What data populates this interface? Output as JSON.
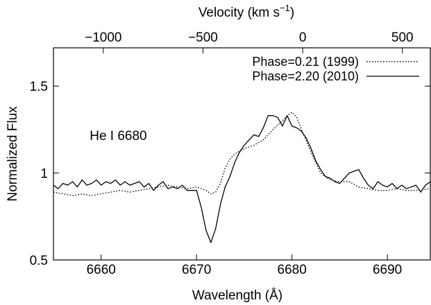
{
  "chart_data": {
    "type": "line",
    "xlabel": "Wavelength (Å)",
    "ylabel": "Normalized Flux",
    "top_axis": {
      "label_base": "Velocity (km s",
      "label_sup": "−1",
      "label_close": ")",
      "ticks": [
        -1000,
        -500,
        0,
        500
      ],
      "tick_labels": [
        "−1000",
        "−500",
        "0",
        "500"
      ],
      "range": [
        -1250,
        640
      ]
    },
    "xlim": [
      6655,
      6694.5
    ],
    "ylim": [
      0.5,
      1.72
    ],
    "xticks": [
      6660,
      6670,
      6680,
      6690
    ],
    "xtick_labels": [
      "6660",
      "6670",
      "6680",
      "6690"
    ],
    "yticks": [
      0.5,
      1,
      1.5
    ],
    "ytick_labels": [
      "0.5",
      "1",
      "1.5"
    ],
    "grid": false,
    "legend_position": "top-right",
    "annotation": {
      "text": "He I 6680",
      "x": 6658.8,
      "y": 1.19
    },
    "series": [
      {
        "name": "Phase=0.21 (1999)",
        "style": "dotted",
        "x": [
          6655.0,
          6656.0,
          6657.0,
          6658.0,
          6659.0,
          6660.0,
          6661.0,
          6662.0,
          6663.0,
          6664.0,
          6665.0,
          6666.0,
          6667.0,
          6668.0,
          6669.0,
          6670.0,
          6671.0,
          6671.5,
          6672.0,
          6672.5,
          6673.0,
          6673.5,
          6674.0,
          6675.0,
          6676.0,
          6677.0,
          6678.0,
          6679.0,
          6679.5,
          6680.0,
          6680.5,
          6681.0,
          6682.0,
          6683.0,
          6684.0,
          6685.0,
          6686.0,
          6687.0,
          6688.0,
          6689.0,
          6690.0,
          6691.0,
          6692.0,
          6693.0,
          6694.5
        ],
        "y": [
          0.89,
          0.88,
          0.87,
          0.88,
          0.87,
          0.88,
          0.89,
          0.9,
          0.89,
          0.9,
          0.91,
          0.92,
          0.93,
          0.92,
          0.91,
          0.92,
          0.9,
          0.88,
          0.89,
          0.94,
          1.03,
          1.08,
          1.11,
          1.14,
          1.16,
          1.19,
          1.25,
          1.3,
          1.33,
          1.35,
          1.32,
          1.25,
          1.12,
          1.0,
          0.96,
          0.95,
          0.95,
          0.92,
          0.91,
          0.9,
          0.9,
          0.91,
          0.9,
          0.9,
          0.91
        ]
      },
      {
        "name": "Phase=2.20 (2010)",
        "style": "solid",
        "x": [
          6655.0,
          6655.5,
          6656.0,
          6656.5,
          6657.0,
          6657.5,
          6658.0,
          6658.5,
          6659.0,
          6659.5,
          6660.0,
          6660.5,
          6661.0,
          6661.5,
          6662.0,
          6662.5,
          6663.0,
          6663.5,
          6664.0,
          6664.5,
          6665.0,
          6665.5,
          6666.0,
          6666.5,
          6667.0,
          6667.5,
          6668.0,
          6668.5,
          6669.0,
          6669.5,
          6670.0,
          6670.5,
          6671.0,
          6671.5,
          6672.0,
          6672.5,
          6673.0,
          6673.5,
          6674.0,
          6674.5,
          6675.0,
          6675.5,
          6676.0,
          6676.5,
          6677.0,
          6677.5,
          6678.0,
          6678.5,
          6679.0,
          6679.5,
          6680.0,
          6680.5,
          6681.0,
          6681.5,
          6682.0,
          6682.5,
          6683.0,
          6683.5,
          6684.0,
          6684.5,
          6685.0,
          6685.5,
          6686.0,
          6686.5,
          6687.0,
          6687.5,
          6688.0,
          6688.5,
          6689.0,
          6689.5,
          6690.0,
          6690.5,
          6691.0,
          6691.5,
          6692.0,
          6692.5,
          6693.0,
          6693.5,
          6694.0,
          6694.5
        ],
        "y": [
          0.93,
          0.91,
          0.94,
          0.93,
          0.95,
          0.92,
          0.96,
          0.93,
          0.94,
          0.96,
          0.93,
          0.95,
          0.94,
          0.96,
          0.93,
          0.95,
          0.93,
          0.94,
          0.95,
          0.92,
          0.94,
          0.9,
          0.93,
          0.95,
          0.91,
          0.92,
          0.91,
          0.93,
          0.9,
          0.9,
          0.9,
          0.8,
          0.67,
          0.6,
          0.68,
          0.82,
          0.92,
          0.98,
          1.06,
          1.12,
          1.16,
          1.19,
          1.22,
          1.21,
          1.26,
          1.33,
          1.33,
          1.32,
          1.27,
          1.33,
          1.27,
          1.26,
          1.24,
          1.2,
          1.14,
          1.07,
          1.02,
          0.98,
          0.97,
          0.95,
          0.94,
          0.97,
          1.0,
          1.01,
          1.02,
          0.97,
          0.93,
          0.91,
          0.95,
          0.93,
          0.92,
          0.94,
          0.91,
          0.93,
          0.91,
          0.92,
          0.93,
          0.89,
          0.93,
          0.95
        ]
      }
    ]
  }
}
